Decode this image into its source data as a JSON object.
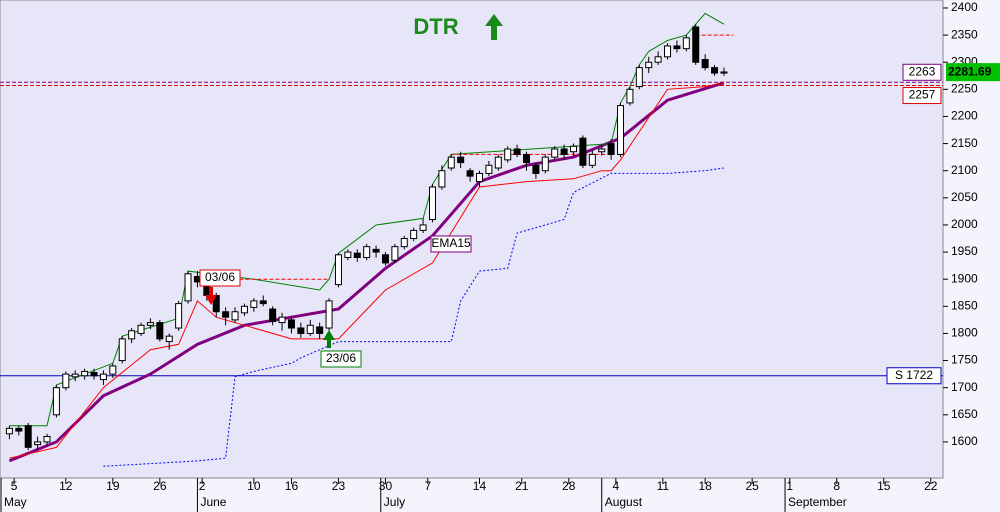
{
  "chart_data": {
    "type": "candlestick",
    "title": "DTR",
    "x": [
      0,
      1,
      2,
      3,
      4,
      5,
      6,
      7,
      8,
      9,
      10,
      11,
      12,
      13,
      14,
      15,
      16,
      17,
      18,
      19,
      20,
      21,
      22,
      23,
      24,
      25,
      26,
      27,
      28,
      29,
      30,
      31,
      32,
      33,
      34,
      35,
      36,
      37,
      38,
      39,
      40,
      41,
      42,
      43,
      44,
      45,
      46,
      47,
      48,
      49,
      50,
      51,
      52,
      53,
      54,
      55,
      56,
      57,
      58,
      59,
      60,
      61,
      62,
      63,
      64,
      65,
      66,
      67,
      68,
      69,
      70,
      71,
      72,
      73,
      74,
      75,
      76
    ],
    "open": [
      1615,
      1625,
      1630,
      1595,
      1600,
      1650,
      1700,
      1720,
      1722,
      1728,
      1715,
      1725,
      1750,
      1790,
      1800,
      1815,
      1820,
      1785,
      1810,
      1860,
      1905,
      1895,
      1870,
      1840,
      1825,
      1838,
      1848,
      1860,
      1845,
      1820,
      1825,
      1810,
      1800,
      1812,
      1810,
      1890,
      1940,
      1948,
      1940,
      1955,
      1945,
      1935,
      1960,
      1975,
      1990,
      2010,
      2070,
      2105,
      2125,
      2100,
      2080,
      2095,
      2105,
      2120,
      2140,
      2130,
      2110,
      2100,
      2125,
      2140,
      2135,
      2160,
      2110,
      2135,
      2150,
      2130,
      2225,
      2255,
      2290,
      2300,
      2310,
      2330,
      2325,
      2365,
      2305,
      2290,
      2280
    ],
    "high": [
      1630,
      1630,
      1635,
      1610,
      1615,
      1705,
      1730,
      1732,
      1735,
      1735,
      1732,
      1745,
      1795,
      1810,
      1820,
      1828,
      1825,
      1800,
      1860,
      1915,
      1915,
      1900,
      1875,
      1848,
      1848,
      1855,
      1865,
      1870,
      1850,
      1838,
      1832,
      1820,
      1825,
      1820,
      1865,
      1948,
      1955,
      1955,
      1965,
      1962,
      1950,
      1965,
      1980,
      1995,
      2012,
      2075,
      2110,
      2130,
      2135,
      2105,
      2100,
      2118,
      2130,
      2145,
      2148,
      2135,
      2115,
      2130,
      2145,
      2148,
      2150,
      2165,
      2138,
      2148,
      2158,
      2225,
      2255,
      2295,
      2310,
      2320,
      2335,
      2340,
      2350,
      2370,
      2315,
      2295,
      2290
    ],
    "low": [
      1605,
      1612,
      1585,
      1585,
      1595,
      1645,
      1695,
      1712,
      1715,
      1715,
      1705,
      1718,
      1745,
      1782,
      1795,
      1808,
      1785,
      1770,
      1805,
      1855,
      1885,
      1860,
      1830,
      1815,
      1820,
      1832,
      1840,
      1850,
      1815,
      1805,
      1800,
      1792,
      1795,
      1790,
      1805,
      1885,
      1935,
      1932,
      1935,
      1940,
      1925,
      1930,
      1955,
      1970,
      1985,
      2005,
      2065,
      2100,
      2105,
      2080,
      2070,
      2090,
      2100,
      2115,
      2125,
      2100,
      2085,
      2095,
      2120,
      2120,
      2128,
      2105,
      2105,
      2128,
      2120,
      2125,
      2220,
      2250,
      2280,
      2295,
      2305,
      2318,
      2320,
      2295,
      2285,
      2275,
      2275
    ],
    "close": [
      1625,
      1620,
      1590,
      1600,
      1610,
      1700,
      1725,
      1725,
      1730,
      1722,
      1725,
      1740,
      1790,
      1805,
      1815,
      1820,
      1790,
      1795,
      1855,
      1910,
      1895,
      1870,
      1840,
      1830,
      1840,
      1850,
      1860,
      1855,
      1822,
      1830,
      1810,
      1800,
      1815,
      1800,
      1860,
      1945,
      1950,
      1940,
      1960,
      1950,
      1930,
      1960,
      1975,
      1990,
      2000,
      2070,
      2100,
      2125,
      2115,
      2090,
      2095,
      2110,
      2125,
      2140,
      2130,
      2115,
      2095,
      2125,
      2140,
      2130,
      2145,
      2110,
      2130,
      2140,
      2130,
      2220,
      2250,
      2290,
      2300,
      2310,
      2330,
      2325,
      2345,
      2300,
      2290,
      2280,
      2282
    ],
    "up_color": "#ffffff",
    "down_color": "#000000",
    "xlim": [
      -1,
      99.3
    ],
    "xticks": [
      {
        "value": 0.5,
        "label": "5"
      },
      {
        "value": 6,
        "label": "12"
      },
      {
        "value": 11,
        "label": "19"
      },
      {
        "value": 16,
        "label": "26"
      },
      {
        "value": 20.5,
        "label": "2"
      },
      {
        "value": 26,
        "label": "10"
      },
      {
        "value": 30,
        "label": "16"
      },
      {
        "value": 35,
        "label": "23"
      },
      {
        "value": 40,
        "label": "30"
      },
      {
        "value": 44.5,
        "label": "7"
      },
      {
        "value": 50,
        "label": "14"
      },
      {
        "value": 54.5,
        "label": "21"
      },
      {
        "value": 59.5,
        "label": "28"
      },
      {
        "value": 64.5,
        "label": "4"
      },
      {
        "value": 69.5,
        "label": "11"
      },
      {
        "value": 74,
        "label": "18"
      },
      {
        "value": 79,
        "label": "25"
      },
      {
        "value": 83,
        "label": "1"
      },
      {
        "value": 88,
        "label": "8"
      },
      {
        "value": 93,
        "label": "15"
      },
      {
        "value": 98,
        "label": "22"
      }
    ],
    "month_labels": [
      {
        "value": -1,
        "label": "May"
      },
      {
        "value": 20,
        "label": "June"
      },
      {
        "value": 39.5,
        "label": "July"
      },
      {
        "value": 63,
        "label": "August"
      },
      {
        "value": 82.5,
        "label": "September"
      }
    ],
    "ylim": [
      1533.5,
      2414.7
    ],
    "yticks": [
      1600,
      1650,
      1700,
      1750,
      1800,
      1850,
      1900,
      1950,
      2000,
      2050,
      2100,
      2150,
      2200,
      2250,
      2300,
      2350,
      2400
    ],
    "lines": [
      {
        "name": "EMA15",
        "color": "#800080",
        "style": "solid",
        "width": 3,
        "x": [
          0,
          5,
          10,
          15,
          20,
          25,
          30,
          35,
          40,
          45,
          50,
          55,
          60,
          65,
          70,
          76
        ],
        "values": [
          1565,
          1600,
          1685,
          1725,
          1780,
          1815,
          1830,
          1845,
          1920,
          1980,
          2080,
          2110,
          2125,
          2160,
          2230,
          2262
        ]
      },
      {
        "color": "#008000",
        "style": "solid",
        "width": 1,
        "x": [
          0,
          4,
          5,
          11,
          12,
          18,
          19,
          26,
          33,
          34,
          35,
          39,
          44,
          45,
          47,
          64,
          65,
          66,
          67,
          68,
          70,
          72,
          74,
          76
        ],
        "values": [
          1630,
          1630,
          1705,
          1745,
          1795,
          1828,
          1915,
          1900,
          1880,
          1900,
          1948,
          2000,
          2012,
          2075,
          2130,
          2150,
          2225,
          2255,
          2295,
          2320,
          2340,
          2350,
          2390,
          2370
        ]
      },
      {
        "color": "#ff0000",
        "style": "solid",
        "width": 1,
        "x": [
          0,
          5,
          10,
          15,
          18,
          20,
          22,
          25,
          30,
          33,
          35,
          40,
          45,
          50,
          55,
          60,
          63,
          64,
          65,
          70,
          74,
          76
        ],
        "values": [
          1570,
          1590,
          1700,
          1770,
          1780,
          1860,
          1830,
          1815,
          1790,
          1790,
          1790,
          1880,
          1930,
          2070,
          2080,
          2085,
          2100,
          2100,
          2120,
          2250,
          2255,
          2262
        ]
      },
      {
        "color": "#0000ff",
        "style": "dotted",
        "width": 1,
        "x": [
          10,
          15,
          20,
          23,
          24,
          26,
          30,
          31,
          35,
          38,
          40,
          45,
          47,
          48,
          50,
          53,
          54,
          59,
          60,
          64,
          65,
          70,
          74,
          76
        ],
        "values": [
          1555,
          1560,
          1565,
          1570,
          1720,
          1730,
          1745,
          1755,
          1785,
          1785,
          1785,
          1785,
          1785,
          1860,
          1915,
          1920,
          1985,
          2010,
          2060,
          2095,
          2095,
          2095,
          2100,
          2105
        ]
      },
      {
        "color": "#ff0000",
        "style": "dashed",
        "width": 1,
        "x": [
          20,
          34
        ],
        "values": [
          1900,
          1900
        ]
      },
      {
        "color": "#ff0000",
        "style": "dashed",
        "width": 1,
        "x": [
          47,
          64
        ],
        "values": [
          2130,
          2130
        ]
      },
      {
        "color": "#ff0000",
        "style": "dashed",
        "width": 1,
        "x": [
          73,
          77
        ],
        "values": [
          2350,
          2350
        ]
      }
    ],
    "hlines": [
      {
        "value": 1722,
        "label": "S 1722",
        "color": "#0000c0",
        "style": "solid"
      },
      {
        "value": 2263,
        "color": "#800080",
        "style": "dashed"
      },
      {
        "value": 2257,
        "color": "#e00000",
        "style": "dashed"
      }
    ],
    "last_price": {
      "value": 2281.69,
      "color": "#00c000"
    },
    "annotations": [
      {
        "text": "03/06",
        "color": "#e00000",
        "arrow": "down"
      },
      {
        "text": "23/06",
        "color": "#008000",
        "arrow": "up"
      },
      {
        "text": "EMA15",
        "color": "#800080"
      }
    ]
  }
}
